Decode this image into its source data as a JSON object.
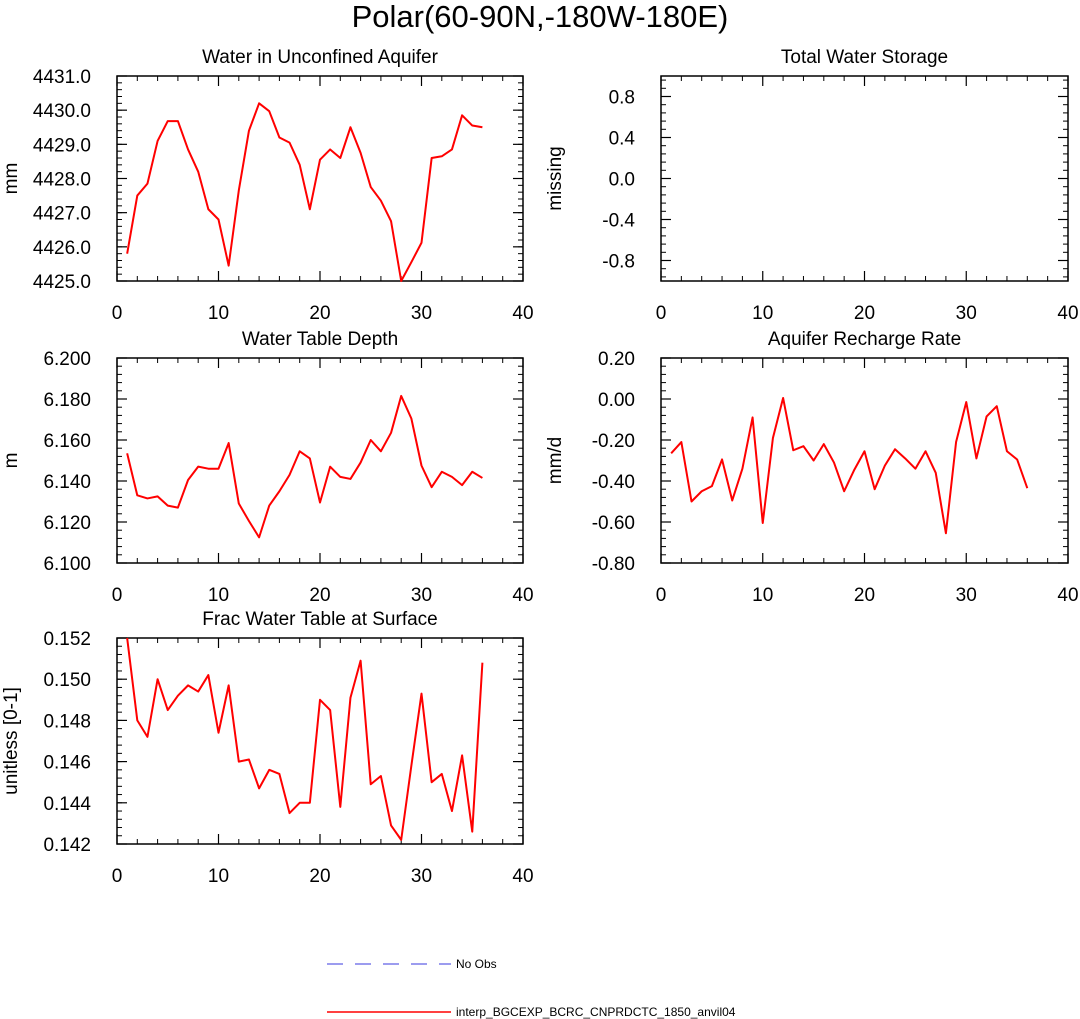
{
  "title": "Polar(60-90N,-180W-180E)",
  "colors": {
    "model": "#ff0000",
    "obs": "#7b7bea",
    "axis": "#000000"
  },
  "legend": [
    {
      "label": "No Obs",
      "style": "dashed",
      "color": "#7b7bea"
    },
    {
      "label": "interp_BGCEXP_BCRC_CNPRDCTC_1850_anvil04",
      "style": "solid",
      "color": "#ff0000"
    }
  ],
  "chart_data": [
    {
      "type": "line",
      "title": "Water in Unconfined Aquifer",
      "xlabel": "",
      "ylabel": "mm",
      "xlim": [
        0,
        40
      ],
      "ylim": [
        4425.0,
        4431.0
      ],
      "xticks": [
        0,
        10,
        20,
        30,
        40
      ],
      "yticks": [
        4425.0,
        4426.0,
        4427.0,
        4428.0,
        4429.0,
        4430.0,
        4431.0
      ],
      "ytick_labels": [
        "4425.0",
        "4426.0",
        "4427.0",
        "4428.0",
        "4429.0",
        "4430.0",
        "4431.0"
      ],
      "x": [
        1,
        2,
        3,
        4,
        5,
        6,
        7,
        8,
        9,
        10,
        11,
        12,
        13,
        14,
        15,
        16,
        17,
        18,
        19,
        20,
        21,
        22,
        23,
        24,
        25,
        26,
        27,
        28,
        29,
        30,
        31,
        32,
        33,
        34,
        35,
        36
      ],
      "series": [
        {
          "name": "interp_BGCEXP_BCRC_CNPRDCTC_1850_anvil04",
          "values": [
            4425.8,
            4427.5,
            4427.85,
            4429.1,
            4429.68,
            4429.68,
            4428.85,
            4428.2,
            4427.1,
            4426.8,
            4425.45,
            4427.65,
            4429.4,
            4430.2,
            4429.97,
            4429.2,
            4429.05,
            4428.4,
            4427.1,
            4428.55,
            4428.85,
            4428.6,
            4429.5,
            4428.75,
            4427.75,
            4427.35,
            4426.75,
            4425.0,
            4425.55,
            4426.12,
            4428.6,
            4428.65,
            4428.85,
            4429.85,
            4429.55,
            4429.5
          ]
        }
      ]
    },
    {
      "type": "line",
      "title": "Total Water Storage",
      "xlabel": "",
      "ylabel": "missing",
      "xlim": [
        0,
        40
      ],
      "ylim": [
        -1.0,
        1.0
      ],
      "xticks": [
        0,
        10,
        20,
        30,
        40
      ],
      "yticks": [
        -0.8,
        -0.4,
        0.0,
        0.4,
        0.8
      ],
      "ytick_labels": [
        "-0.8",
        "-0.4",
        "0.0",
        "0.4",
        "0.8"
      ],
      "x": [],
      "series": []
    },
    {
      "type": "line",
      "title": "Water Table Depth",
      "xlabel": "",
      "ylabel": "m",
      "xlim": [
        0,
        40
      ],
      "ylim": [
        6.1,
        6.2
      ],
      "xticks": [
        0,
        10,
        20,
        30,
        40
      ],
      "yticks": [
        6.1,
        6.12,
        6.14,
        6.16,
        6.18,
        6.2
      ],
      "ytick_labels": [
        "6.100",
        "6.120",
        "6.140",
        "6.160",
        "6.180",
        "6.200"
      ],
      "x": [
        1,
        2,
        3,
        4,
        5,
        6,
        7,
        8,
        9,
        10,
        11,
        12,
        13,
        14,
        15,
        16,
        17,
        18,
        19,
        20,
        21,
        22,
        23,
        24,
        25,
        26,
        27,
        28,
        29,
        30,
        31,
        32,
        33,
        34,
        35,
        36
      ],
      "series": [
        {
          "name": "interp_BGCEXP_BCRC_CNPRDCTC_1850_anvil04",
          "values": [
            6.1535,
            6.133,
            6.1315,
            6.1325,
            6.128,
            6.127,
            6.1405,
            6.147,
            6.146,
            6.146,
            6.1585,
            6.129,
            6.1205,
            6.1125,
            6.128,
            6.135,
            6.143,
            6.1545,
            6.151,
            6.1295,
            6.147,
            6.142,
            6.141,
            6.149,
            6.16,
            6.1545,
            6.1635,
            6.1815,
            6.1705,
            6.1475,
            6.137,
            6.1445,
            6.142,
            6.138,
            6.1445,
            6.1415
          ]
        }
      ]
    },
    {
      "type": "line",
      "title": "Aquifer Recharge Rate",
      "xlabel": "",
      "ylabel": "mm/d",
      "xlim": [
        0,
        40
      ],
      "ylim": [
        -0.8,
        0.2
      ],
      "xticks": [
        0,
        10,
        20,
        30,
        40
      ],
      "yticks": [
        -0.8,
        -0.6,
        -0.4,
        -0.2,
        0.0,
        0.2
      ],
      "ytick_labels": [
        "-0.80",
        "-0.60",
        "-0.40",
        "-0.20",
        "0.00",
        "0.20"
      ],
      "x": [
        1,
        2,
        3,
        4,
        5,
        6,
        7,
        8,
        9,
        10,
        11,
        12,
        13,
        14,
        15,
        16,
        17,
        18,
        19,
        20,
        21,
        22,
        23,
        24,
        25,
        26,
        27,
        28,
        29,
        30,
        31,
        32,
        33,
        34,
        35,
        36
      ],
      "series": [
        {
          "name": "interp_BGCEXP_BCRC_CNPRDCTC_1850_anvil04",
          "values": [
            -0.265,
            -0.21,
            -0.5,
            -0.45,
            -0.425,
            -0.295,
            -0.495,
            -0.34,
            -0.09,
            -0.605,
            -0.19,
            0.005,
            -0.25,
            -0.23,
            -0.3,
            -0.22,
            -0.31,
            -0.45,
            -0.345,
            -0.255,
            -0.44,
            -0.325,
            -0.245,
            -0.29,
            -0.34,
            -0.255,
            -0.36,
            -0.655,
            -0.21,
            -0.015,
            -0.29,
            -0.085,
            -0.035,
            -0.255,
            -0.295,
            -0.435
          ]
        }
      ]
    },
    {
      "type": "line",
      "title": "Frac Water Table at Surface",
      "xlabel": "",
      "ylabel": "unitless [0-1]",
      "xlim": [
        0,
        40
      ],
      "ylim": [
        0.142,
        0.152
      ],
      "xticks": [
        0,
        10,
        20,
        30,
        40
      ],
      "yticks": [
        0.142,
        0.144,
        0.146,
        0.148,
        0.15,
        0.152
      ],
      "ytick_labels": [
        "0.142",
        "0.144",
        "0.146",
        "0.148",
        "0.150",
        "0.152"
      ],
      "x": [
        1,
        2,
        3,
        4,
        5,
        6,
        7,
        8,
        9,
        10,
        11,
        12,
        13,
        14,
        15,
        16,
        17,
        18,
        19,
        20,
        21,
        22,
        23,
        24,
        25,
        26,
        27,
        28,
        29,
        30,
        31,
        32,
        33,
        34,
        35,
        36
      ],
      "series": [
        {
          "name": "interp_BGCEXP_BCRC_CNPRDCTC_1850_anvil04",
          "values": [
            0.152,
            0.148,
            0.1472,
            0.15,
            0.1485,
            0.1492,
            0.1497,
            0.1494,
            0.1502,
            0.1474,
            0.1497,
            0.146,
            0.1461,
            0.1447,
            0.1456,
            0.1454,
            0.1435,
            0.144,
            0.144,
            0.149,
            0.1485,
            0.1438,
            0.1491,
            0.1509,
            0.1449,
            0.1453,
            0.1429,
            0.1422,
            0.1458,
            0.1493,
            0.145,
            0.1454,
            0.1436,
            0.1463,
            0.1426,
            0.1508
          ]
        }
      ]
    }
  ]
}
